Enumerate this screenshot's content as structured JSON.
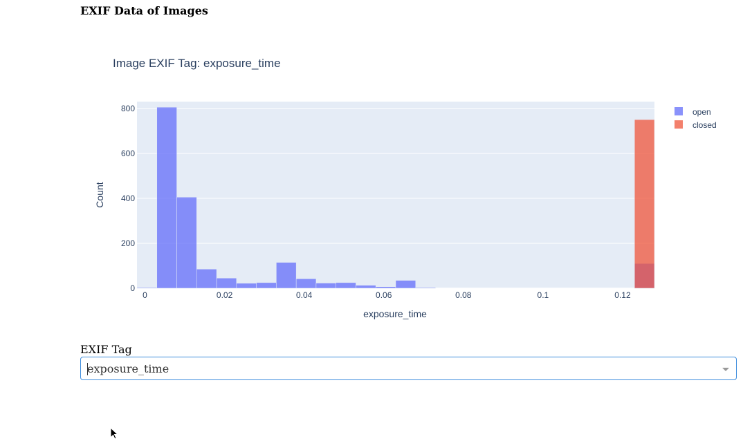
{
  "page": {
    "title": "EXIF Data of Images"
  },
  "dropdown": {
    "label": "EXIF Tag",
    "value": "exposure_time"
  },
  "icons": {
    "dropdown_arrow": "chevron-down-icon",
    "cursor": "mouse-pointer-icon"
  },
  "colors": {
    "open": "#636efa",
    "closed": "#ef553b",
    "plot_bg": "#e5ecf6",
    "text": "#2a3f5f"
  },
  "chart_data": {
    "type": "bar",
    "title": "Image EXIF Tag: exposure_time",
    "xlabel": "exposure_time",
    "ylabel": "Count",
    "xlim": [
      -0.002,
      0.128
    ],
    "ylim": [
      0,
      830
    ],
    "xticks": [
      0,
      0.02,
      0.04,
      0.06,
      0.08,
      0.1,
      0.12
    ],
    "xtick_labels": [
      "0",
      "0.02",
      "0.04",
      "0.06",
      "0.08",
      "0.1",
      "0.12"
    ],
    "yticks": [
      0,
      200,
      400,
      600,
      800
    ],
    "ytick_labels": [
      "0",
      "200",
      "400",
      "600",
      "800"
    ],
    "bin_width": 0.005,
    "grid": true,
    "legend_position": "top-right",
    "barmode": "overlay",
    "series": [
      {
        "name": "open",
        "bin_starts": [
          -0.002,
          0.003,
          0.008,
          0.013,
          0.018,
          0.023,
          0.028,
          0.033,
          0.038,
          0.043,
          0.048,
          0.053,
          0.058,
          0.063,
          0.068,
          0.123
        ],
        "counts": [
          3,
          805,
          405,
          85,
          45,
          22,
          25,
          115,
          42,
          23,
          25,
          13,
          7,
          35,
          3,
          110
        ]
      },
      {
        "name": "closed",
        "bin_starts": [
          0.123
        ],
        "counts": [
          750
        ]
      }
    ]
  }
}
